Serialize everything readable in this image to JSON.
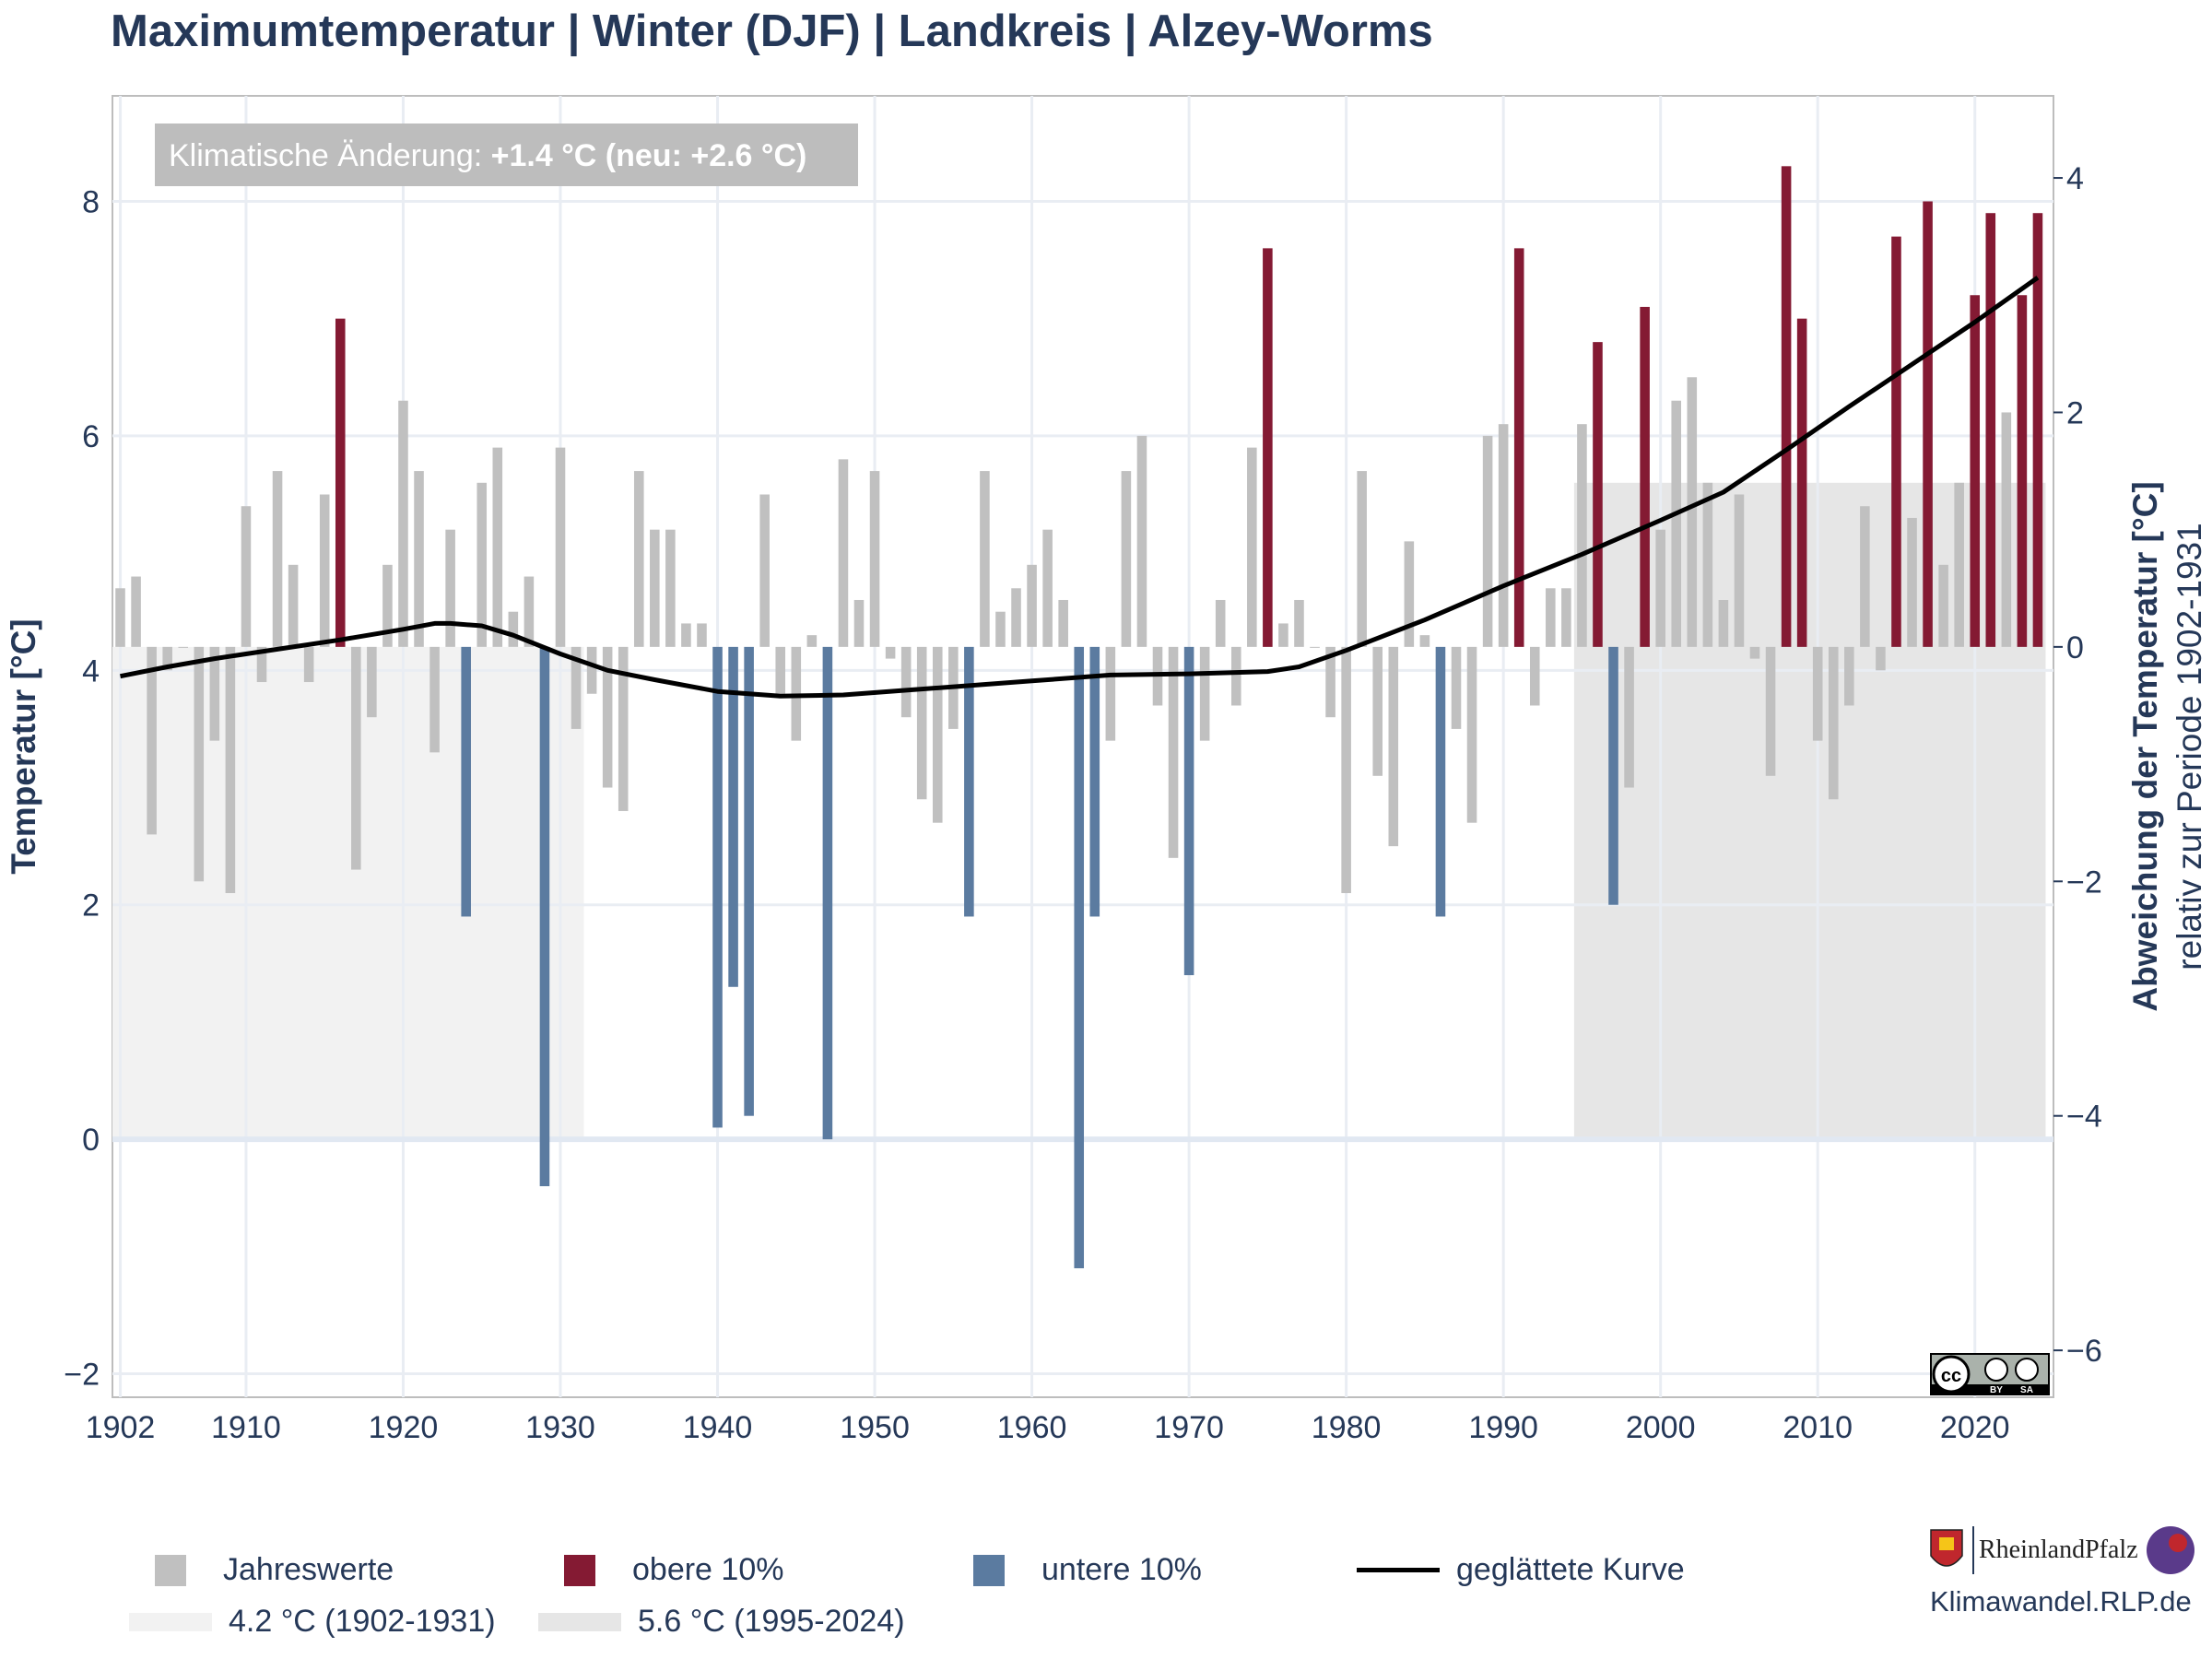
{
  "page": {
    "title": "Maximumtemperatur | Winter (DJF) | Landkreis | Alzey-Worms",
    "annotation_prefix": "Klimatische Änderung: ",
    "annotation_value": "+1.4 °C (neu: +2.6 °C)",
    "site": "Klimawandel.RLP.de",
    "logo_text": "RheinlandPfalz"
  },
  "legend": {
    "jahreswerte": "Jahreswerte",
    "obere": "obere 10%",
    "untere": "untere 10%",
    "kurve": "geglättete Kurve",
    "ref_old": "4.2 °C (1902-1931)",
    "ref_new": "5.6 °C (1995-2024)"
  },
  "colors": {
    "neutral": "#c0c0c0",
    "upper": "#841a33",
    "lower": "#5b7ba0",
    "curve": "#000000",
    "ref_old_band": "#f2f2f2",
    "ref_new_band": "#e6e6e6",
    "text": "#253858"
  },
  "chart_data": {
    "type": "bar",
    "ylabel": "Temperatur [°C]",
    "y2label": "Abweichung der Temperatur [°C]",
    "y2label_sub": "relativ zur Periode 1902-1931",
    "ylim": [
      -2.2,
      8.9
    ],
    "xlim": [
      1901.5,
      2025
    ],
    "y_ticks": [
      "−2",
      "0",
      "2",
      "4",
      "6",
      "8"
    ],
    "y2_ticks": [
      "−6",
      "−4",
      "−2",
      "0",
      "2",
      "4"
    ],
    "x_ticks": [
      "1902",
      "1910",
      "1920",
      "1930",
      "1940",
      "1950",
      "1960",
      "1970",
      "1980",
      "1990",
      "2000",
      "2010",
      "2020"
    ],
    "baseline": 4.2,
    "reference_periods": [
      {
        "label": "4.2 °C (1902-1931)",
        "from": 1902,
        "to": 1931,
        "value": 4.2
      },
      {
        "label": "5.6 °C (1995-2024)",
        "from": 1995,
        "to": 2024,
        "value": 5.6
      }
    ],
    "years": [
      1902,
      1903,
      1904,
      1905,
      1906,
      1907,
      1908,
      1909,
      1910,
      1911,
      1912,
      1913,
      1914,
      1915,
      1916,
      1917,
      1918,
      1919,
      1920,
      1921,
      1922,
      1923,
      1924,
      1925,
      1926,
      1927,
      1928,
      1929,
      1930,
      1931,
      1932,
      1933,
      1934,
      1935,
      1936,
      1937,
      1938,
      1939,
      1940,
      1941,
      1942,
      1943,
      1944,
      1945,
      1946,
      1947,
      1948,
      1949,
      1950,
      1951,
      1952,
      1953,
      1954,
      1955,
      1956,
      1957,
      1958,
      1959,
      1960,
      1961,
      1962,
      1963,
      1964,
      1965,
      1966,
      1967,
      1968,
      1969,
      1970,
      1971,
      1972,
      1973,
      1974,
      1975,
      1976,
      1977,
      1978,
      1979,
      1980,
      1981,
      1982,
      1983,
      1984,
      1985,
      1986,
      1987,
      1988,
      1989,
      1990,
      1991,
      1992,
      1993,
      1994,
      1995,
      1996,
      1997,
      1998,
      1999,
      2000,
      2001,
      2002,
      2003,
      2004,
      2005,
      2006,
      2007,
      2008,
      2009,
      2010,
      2011,
      2012,
      2013,
      2014,
      2015,
      2016,
      2017,
      2018,
      2019,
      2020,
      2021,
      2022,
      2023,
      2024
    ],
    "values": [
      4.7,
      4.8,
      2.6,
      4.0,
      4.2,
      2.2,
      3.4,
      2.1,
      5.4,
      3.9,
      5.7,
      4.9,
      3.9,
      5.5,
      7.0,
      2.3,
      3.6,
      4.9,
      6.3,
      5.7,
      3.3,
      5.2,
      1.9,
      5.6,
      5.9,
      4.5,
      4.8,
      -0.4,
      5.9,
      3.5,
      3.8,
      3.0,
      2.8,
      5.7,
      5.2,
      5.2,
      4.4,
      4.4,
      0.1,
      1.3,
      0.2,
      5.5,
      3.8,
      3.4,
      4.3,
      0.0,
      5.8,
      4.6,
      5.7,
      4.1,
      3.6,
      2.9,
      2.7,
      3.5,
      1.9,
      5.7,
      4.5,
      4.7,
      4.9,
      5.2,
      4.6,
      -1.1,
      1.9,
      3.4,
      5.7,
      6.0,
      3.7,
      2.4,
      1.4,
      3.4,
      4.6,
      3.7,
      5.9,
      7.6,
      4.4,
      4.6,
      4.2,
      3.6,
      2.1,
      5.7,
      3.1,
      2.5,
      5.1,
      4.3,
      1.9,
      3.5,
      2.7,
      6.0,
      6.1,
      7.6,
      3.7,
      4.7,
      4.7,
      6.1,
      6.8,
      2.0,
      3.0,
      7.1,
      5.2,
      6.3,
      6.5,
      5.6,
      4.6,
      5.5,
      4.1,
      3.1,
      8.3,
      7.0,
      3.4,
      2.9,
      3.7,
      5.4,
      4.0,
      7.7,
      5.3,
      8.0,
      4.9,
      5.6,
      7.2,
      7.9,
      6.2,
      7.2,
      7.9
    ],
    "categories": [
      "normal",
      "normal",
      "normal",
      "normal",
      "normal",
      "normal",
      "normal",
      "normal",
      "normal",
      "normal",
      "normal",
      "normal",
      "normal",
      "normal",
      "upper",
      "normal",
      "normal",
      "normal",
      "normal",
      "normal",
      "normal",
      "normal",
      "lower",
      "normal",
      "normal",
      "normal",
      "normal",
      "lower",
      "normal",
      "normal",
      "normal",
      "normal",
      "normal",
      "normal",
      "normal",
      "normal",
      "normal",
      "normal",
      "lower",
      "lower",
      "lower",
      "normal",
      "normal",
      "normal",
      "normal",
      "lower",
      "normal",
      "normal",
      "normal",
      "normal",
      "normal",
      "normal",
      "normal",
      "normal",
      "lower",
      "normal",
      "normal",
      "normal",
      "normal",
      "normal",
      "normal",
      "lower",
      "lower",
      "normal",
      "normal",
      "normal",
      "normal",
      "normal",
      "lower",
      "normal",
      "normal",
      "normal",
      "normal",
      "upper",
      "normal",
      "normal",
      "normal",
      "normal",
      "normal",
      "normal",
      "normal",
      "normal",
      "normal",
      "normal",
      "lower",
      "normal",
      "normal",
      "normal",
      "normal",
      "upper",
      "normal",
      "normal",
      "normal",
      "normal",
      "upper",
      "lower",
      "normal",
      "upper",
      "normal",
      "normal",
      "normal",
      "normal",
      "normal",
      "normal",
      "normal",
      "normal",
      "upper",
      "upper",
      "normal",
      "normal",
      "normal",
      "normal",
      "normal",
      "upper",
      "normal",
      "upper",
      "normal",
      "normal",
      "upper",
      "upper",
      "normal",
      "upper",
      "upper"
    ],
    "smoothed": {
      "x": [
        1902,
        1905,
        1908,
        1912,
        1916,
        1920,
        1922,
        1923,
        1925,
        1927,
        1930,
        1933,
        1936,
        1940,
        1944,
        1948,
        1952,
        1956,
        1960,
        1965,
        1970,
        1975,
        1977,
        1980,
        1985,
        1990,
        1995,
        2000,
        2004,
        2008,
        2012,
        2016,
        2020,
        2024
      ],
      "y": [
        3.95,
        4.03,
        4.1,
        4.18,
        4.26,
        4.35,
        4.4,
        4.4,
        4.38,
        4.3,
        4.14,
        4.0,
        3.92,
        3.82,
        3.78,
        3.79,
        3.83,
        3.87,
        3.91,
        3.96,
        3.97,
        3.99,
        4.03,
        4.17,
        4.43,
        4.72,
        4.99,
        5.28,
        5.52,
        5.88,
        6.25,
        6.61,
        6.97,
        7.35
      ]
    }
  }
}
